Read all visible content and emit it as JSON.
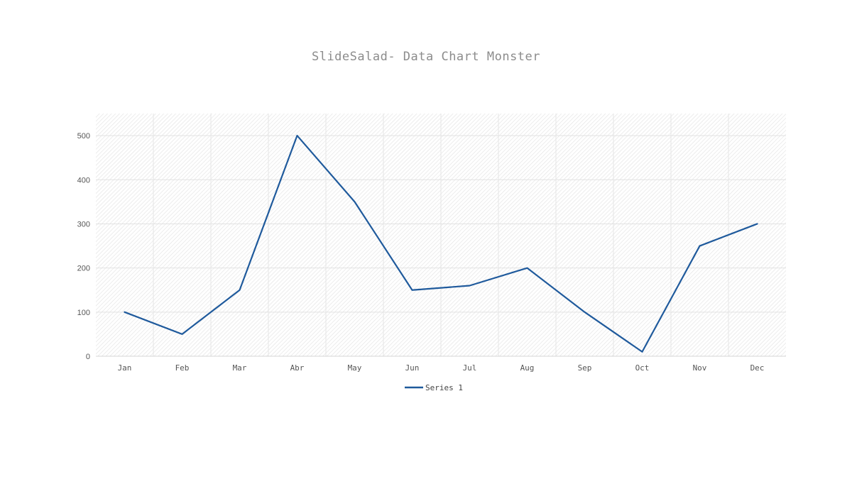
{
  "chart_data": {
    "type": "line",
    "title": "SlideSalad- Data Chart Monster",
    "categories": [
      "Jan",
      "Feb",
      "Mar",
      "Abr",
      "May",
      "Jun",
      "Jul",
      "Aug",
      "Sep",
      "Oct",
      "Nov",
      "Dec"
    ],
    "series": [
      {
        "name": "Series 1",
        "values": [
          100,
          50,
          150,
          500,
          350,
          150,
          160,
          200,
          100,
          10,
          250,
          300
        ],
        "color": "#1f5a9c"
      }
    ],
    "ylim": [
      0,
      550
    ],
    "yticks": [
      0,
      100,
      200,
      300,
      400,
      500
    ],
    "grid": true,
    "legend_position": "bottom"
  }
}
